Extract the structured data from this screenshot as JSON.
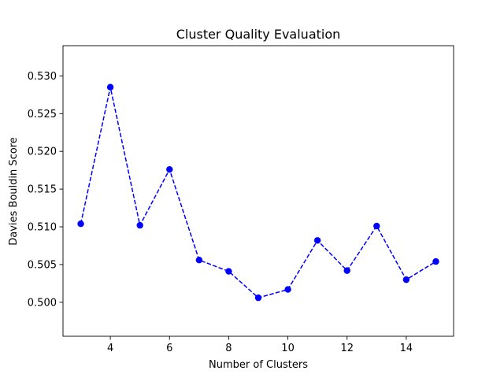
{
  "chart_data": {
    "type": "line",
    "title": "Cluster Quality Evaluation",
    "xlabel": "Number of Clusters",
    "ylabel": "Davies Bouldin Score",
    "xlim": [
      2.4,
      15.6
    ],
    "ylim": [
      0.4955,
      0.534
    ],
    "xticks": [
      4,
      6,
      8,
      10,
      12,
      14
    ],
    "yticks": [
      0.5,
      0.505,
      0.51,
      0.515,
      0.52,
      0.525,
      0.53
    ],
    "xtick_labels": [
      "4",
      "6",
      "8",
      "10",
      "12",
      "14"
    ],
    "ytick_labels": [
      "0.500",
      "0.505",
      "0.510",
      "0.515",
      "0.520",
      "0.525",
      "0.530"
    ],
    "grid": false,
    "series": [
      {
        "color": "#0000ff",
        "line_style": "dashed",
        "marker": "circle",
        "x": [
          3,
          4,
          5,
          6,
          7,
          8,
          9,
          10,
          11,
          12,
          13,
          14,
          15
        ],
        "y": [
          0.5104,
          0.5285,
          0.5102,
          0.5176,
          0.5056,
          0.5041,
          0.5006,
          0.5017,
          0.5082,
          0.5042,
          0.5101,
          0.503,
          0.5054
        ]
      }
    ]
  }
}
